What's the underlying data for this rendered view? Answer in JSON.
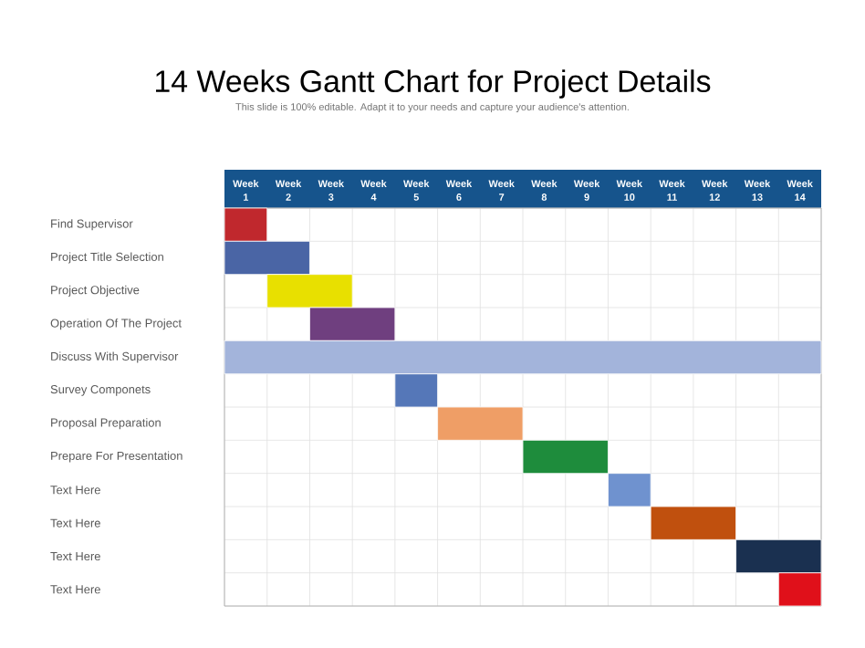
{
  "chart_data": {
    "type": "bar",
    "orientation": "horizontal",
    "title": "14 Weeks Gantt Chart for Project Details",
    "subtitle": "This slide is 100% editable. Adapt it to your needs and capture your audience's attention.",
    "categories": [
      "Find Supervisor",
      "Project Title Selection",
      "Project Objective",
      "Operation Of The Project",
      "Discuss With Supervisor",
      "Survey Componets",
      "Proposal Preparation",
      "Prepare For Presentation",
      "Text Here",
      "Text Here",
      "Text Here",
      "Text Here"
    ],
    "base": [
      0.5,
      0.5,
      1.5,
      2.5,
      0.5,
      4.5,
      5.5,
      7.5,
      9.5,
      10.5,
      12.5,
      13.5
    ],
    "values": [
      1,
      2,
      2,
      2,
      14,
      1,
      2,
      2,
      1,
      2,
      2,
      1
    ],
    "colors": [
      "#c0282d",
      "#4a65a5",
      "#e8e000",
      "#6f3f7f",
      "#a3b4db",
      "#5577b8",
      "#ef9e66",
      "#1e8c3c",
      "#6f92cf",
      "#c0500e",
      "#1a3050",
      "#e0101a"
    ],
    "xlim": [
      0.5,
      14.5
    ],
    "xticks": [
      1,
      2,
      3,
      4,
      5,
      6,
      7,
      8,
      9,
      10,
      11,
      12,
      13,
      14
    ],
    "annotations": [
      "Week",
      "Week",
      "Week",
      "Week",
      "Week",
      "Week",
      "Week",
      "Week",
      "Week",
      "Week",
      "Week",
      "Week",
      "Week",
      "Week"
    ],
    "grid": true
  }
}
